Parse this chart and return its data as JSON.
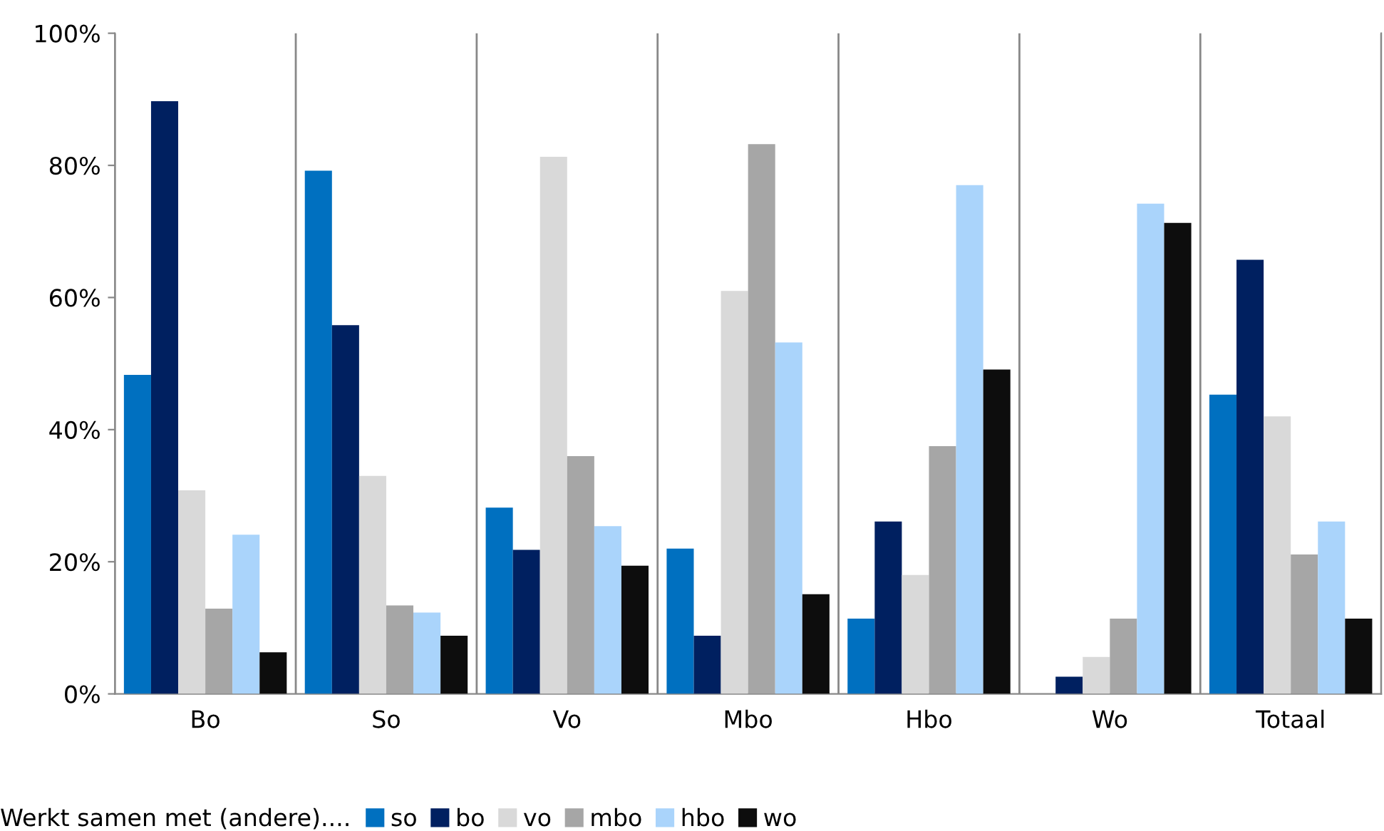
{
  "chart_data": {
    "type": "bar",
    "categories": [
      "Bo",
      "So",
      "Vo",
      "Mbo",
      "Hbo",
      "Wo",
      "Totaal"
    ],
    "series": [
      {
        "name": "so",
        "color": "#0070c0",
        "values": [
          48.3,
          79.2,
          28.2,
          22,
          11.4,
          0,
          45.3
        ]
      },
      {
        "name": "bo",
        "color": "#002060",
        "values": [
          89.7,
          55.8,
          21.8,
          8.8,
          26.1,
          2.6,
          65.7
        ]
      },
      {
        "name": "vo",
        "color": "#d9d9d9",
        "values": [
          30.8,
          33,
          81.3,
          61,
          18,
          5.6,
          42
        ]
      },
      {
        "name": "mbo",
        "color": "#a6a6a6",
        "values": [
          12.9,
          13.4,
          36,
          83.2,
          37.5,
          11.4,
          21.1
        ]
      },
      {
        "name": "hbo",
        "color": "#aad4fb",
        "values": [
          24.1,
          12.3,
          25.4,
          53.2,
          77,
          74.2,
          26.1
        ]
      },
      {
        "name": "wo",
        "color": "#0d0d0d",
        "values": [
          6.3,
          8.8,
          19.4,
          15.1,
          49.1,
          71.3,
          11.4
        ]
      }
    ],
    "ylim": [
      0,
      100
    ],
    "yticks": [
      {
        "value": 0,
        "label": "0%"
      },
      {
        "value": 20,
        "label": "20%"
      },
      {
        "value": 40,
        "label": "40%"
      },
      {
        "value": 60,
        "label": "60%"
      },
      {
        "value": 80,
        "label": "80%"
      },
      {
        "value": 100,
        "label": "100%"
      }
    ],
    "grid": "x",
    "legend": "bottom",
    "legend_title": "Werkt samen met (andere)...."
  }
}
